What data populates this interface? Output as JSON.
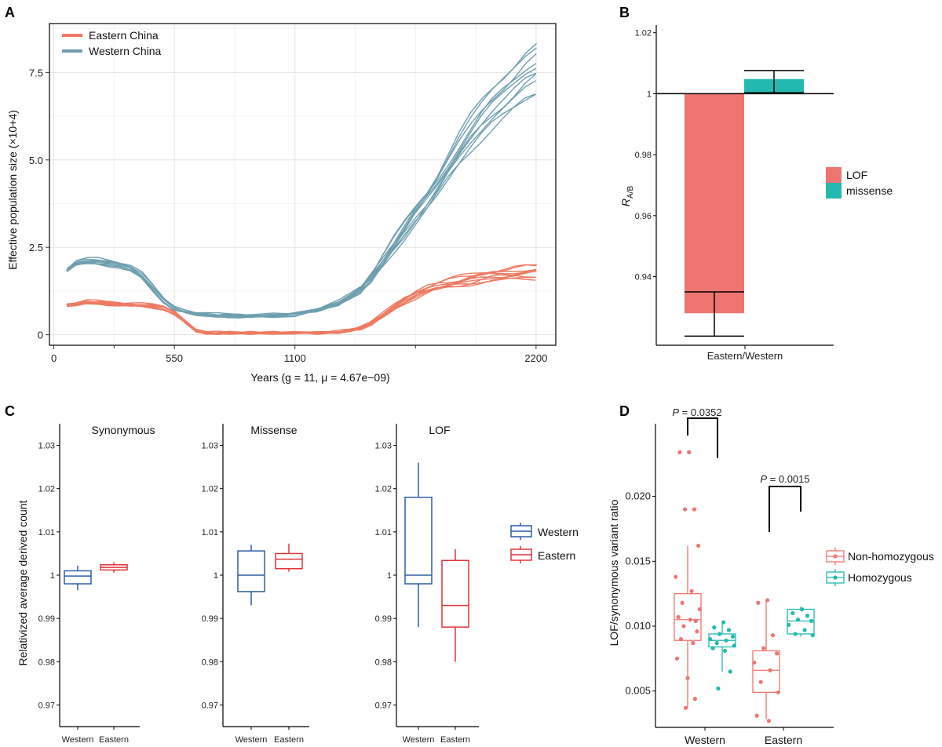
{
  "panels": {
    "A": "A",
    "B": "B",
    "C": "C",
    "D": "D"
  },
  "colors": {
    "eastern": "#ee7a63",
    "western": "#6e9fb0",
    "lof": "#ee7571",
    "missense": "#23b8b0",
    "box_western": "#2f5ea5",
    "box_eastern": "#e0353a",
    "nonhom": "#ee7571",
    "hom": "#23b8b0"
  },
  "chart_data": [
    {
      "id": "A",
      "type": "line",
      "xlabel": "Years (g = 11, μ = 4.67e−09)",
      "ylabel": "Effective population size (×10+4)",
      "xlim": [
        -20,
        2290
      ],
      "ylim": [
        -0.3,
        8.9
      ],
      "xticks": [
        0,
        550,
        1100,
        2200
      ],
      "xtick_labels": [
        "0",
        "550",
        "1100",
        "2200"
      ],
      "yticks": [
        0,
        2.5,
        5.0,
        7.5
      ],
      "ytick_labels": [
        "0",
        "2.5",
        "5.0",
        "7.5"
      ],
      "legend": [
        "Eastern China",
        "Western China"
      ],
      "series": [
        {
          "name": "Western China",
          "replicates": 10,
          "x": [
            60,
            100,
            150,
            200,
            250,
            300,
            350,
            400,
            450,
            500,
            550,
            600,
            650,
            700,
            750,
            800,
            850,
            900,
            1000,
            1100,
            1200,
            1300,
            1400,
            1450,
            1500,
            1550,
            1600,
            1650,
            1700,
            1750,
            1800,
            1850,
            1900,
            1950,
            2000,
            2050,
            2100,
            2150,
            2200
          ],
          "y": [
            1.85,
            2.05,
            2.1,
            2.1,
            2.05,
            2.0,
            1.9,
            1.7,
            1.35,
            1.0,
            0.75,
            0.65,
            0.6,
            0.57,
            0.55,
            0.55,
            0.54,
            0.54,
            0.55,
            0.58,
            0.7,
            0.9,
            1.3,
            1.65,
            2.1,
            2.55,
            3.0,
            3.45,
            3.85,
            4.3,
            4.8,
            5.3,
            5.75,
            6.15,
            6.5,
            6.8,
            7.1,
            7.4,
            7.6
          ]
        },
        {
          "name": "Eastern China",
          "replicates": 10,
          "x": [
            60,
            100,
            150,
            200,
            250,
            300,
            350,
            400,
            450,
            500,
            550,
            600,
            650,
            700,
            750,
            800,
            900,
            1000,
            1100,
            1200,
            1300,
            1350,
            1400,
            1450,
            1500,
            1550,
            1600,
            1650,
            1700,
            1750,
            1800,
            1850,
            1900,
            1950,
            2000,
            2050,
            2100,
            2150,
            2200
          ],
          "y": [
            0.85,
            0.88,
            0.93,
            0.92,
            0.9,
            0.88,
            0.86,
            0.84,
            0.82,
            0.78,
            0.62,
            0.35,
            0.12,
            0.05,
            0.05,
            0.05,
            0.05,
            0.05,
            0.05,
            0.05,
            0.08,
            0.12,
            0.2,
            0.35,
            0.55,
            0.78,
            1.0,
            1.15,
            1.28,
            1.38,
            1.45,
            1.52,
            1.58,
            1.65,
            1.7,
            1.72,
            1.75,
            1.78,
            1.8
          ]
        }
      ]
    },
    {
      "id": "B",
      "type": "bar",
      "categories": [
        "Eastern/Western"
      ],
      "ylabel": "R A/B",
      "ylabel_main": "R",
      "ylabel_sub": "A/B",
      "baseline": 1,
      "ylim": [
        0.9175,
        1.0225
      ],
      "yticks": [
        0.94,
        0.96,
        0.98,
        1,
        1.02
      ],
      "ytick_labels": [
        "0.94",
        "0.96",
        "0.98",
        "1",
        "1.02"
      ],
      "legend": [
        "LOF",
        "missense"
      ],
      "series": [
        {
          "name": "LOF",
          "value": 0.928,
          "err_low": 0.9205,
          "err_high": 0.935
        },
        {
          "name": "missense",
          "value": 1.0048,
          "err_low": 1.0003,
          "err_high": 1.0076
        }
      ]
    },
    {
      "id": "C",
      "type": "box",
      "ylabel": "Relativized average derived count",
      "ylim": [
        0.965,
        1.035
      ],
      "yticks": [
        0.97,
        0.98,
        0.99,
        1,
        1.01,
        1.02,
        1.03
      ],
      "ytick_labels": [
        "0.97",
        "0.98",
        "0.99",
        "1",
        "1.01",
        "1.02",
        "1.03"
      ],
      "categories": [
        "Western",
        "Eastern"
      ],
      "legend": [
        "Western",
        "Eastern"
      ],
      "facets": [
        {
          "title": "Synonymous",
          "boxes": [
            {
              "group": "Western",
              "min": 0.9965,
              "q1": 0.998,
              "median": 0.9998,
              "q3": 1.001,
              "max": 1.0022
            },
            {
              "group": "Eastern",
              "min": 1.0006,
              "q1": 1.0012,
              "median": 1.0018,
              "q3": 1.0024,
              "max": 1.003
            }
          ]
        },
        {
          "title": "Missense",
          "boxes": [
            {
              "group": "Western",
              "min": 0.993,
              "q1": 0.9962,
              "median": 1.0,
              "q3": 1.0056,
              "max": 1.007
            },
            {
              "group": "Eastern",
              "min": 1.0008,
              "q1": 1.0015,
              "median": 1.0037,
              "q3": 1.005,
              "max": 1.0073
            }
          ]
        },
        {
          "title": "LOF",
          "boxes": [
            {
              "group": "Western",
              "min": 0.988,
              "q1": 0.998,
              "median": 1.0,
              "q3": 1.018,
              "max": 1.026
            },
            {
              "group": "Eastern",
              "min": 0.98,
              "q1": 0.988,
              "median": 0.993,
              "q3": 1.0034,
              "max": 1.006
            }
          ]
        }
      ]
    },
    {
      "id": "D",
      "type": "box",
      "ylabel": "LOF/synonymous variant ratio",
      "ylim": [
        0.0022,
        0.0256
      ],
      "yticks": [
        0.005,
        0.01,
        0.015,
        0.02
      ],
      "ytick_labels": [
        "0.005",
        "0.010",
        "0.015",
        "0.020"
      ],
      "categories": [
        "Western",
        "Eastern"
      ],
      "legend": [
        "Non-homozygous",
        "Homozygous"
      ],
      "annotations": [
        {
          "text": "P = 0.0352",
          "p_label": "P",
          "p_value": "= 0.0352",
          "category": "Western"
        },
        {
          "text": "P = 0.0015",
          "p_label": "P",
          "p_value": "= 0.0015",
          "category": "Eastern"
        }
      ],
      "boxes": [
        {
          "category": "Western",
          "group": "Non-homozygous",
          "min": 0.0037,
          "q1": 0.0089,
          "median": 0.0105,
          "q3": 0.0125,
          "max": 0.0162,
          "points": [
            0.0234,
            0.0234,
            0.019,
            0.019,
            0.0162,
            0.0138,
            0.0127,
            0.0118,
            0.0113,
            0.0107,
            0.0105,
            0.0104,
            0.01,
            0.0096,
            0.009,
            0.0087,
            0.0075,
            0.006,
            0.0044,
            0.0037
          ]
        },
        {
          "category": "Western",
          "group": "Homozygous",
          "min": 0.0065,
          "q1": 0.0084,
          "median": 0.0089,
          "q3": 0.0094,
          "max": 0.0103,
          "points": [
            0.0103,
            0.0099,
            0.0097,
            0.0094,
            0.0092,
            0.009,
            0.0089,
            0.0087,
            0.0085,
            0.0083,
            0.0081,
            0.0065,
            0.0052
          ]
        },
        {
          "category": "Eastern",
          "group": "Non-homozygous",
          "min": 0.0028,
          "q1": 0.0049,
          "median": 0.0066,
          "q3": 0.0081,
          "max": 0.012,
          "points": [
            0.012,
            0.0118,
            0.0093,
            0.0083,
            0.0079,
            0.0072,
            0.0066,
            0.0057,
            0.0049,
            0.0031,
            0.0027
          ]
        },
        {
          "category": "Eastern",
          "group": "Homozygous",
          "min": 0.0092,
          "q1": 0.0094,
          "median": 0.0104,
          "q3": 0.0113,
          "max": 0.0115,
          "points": [
            0.0113,
            0.011,
            0.0108,
            0.0105,
            0.0104,
            0.0101,
            0.0097,
            0.0094,
            0.0093
          ]
        }
      ]
    }
  ]
}
